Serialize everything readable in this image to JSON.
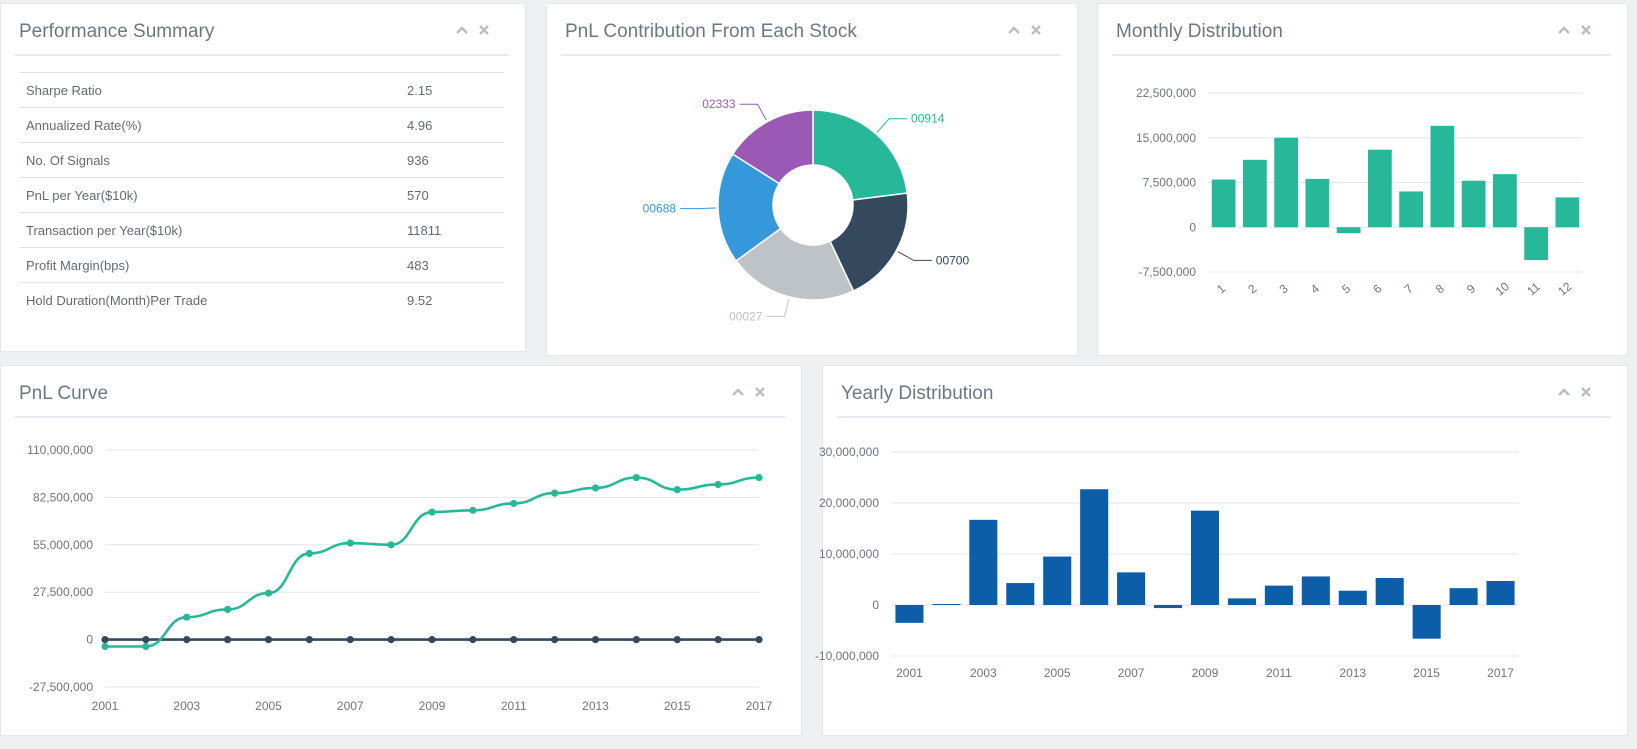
{
  "colors": {
    "teal": "#26b899",
    "navy": "#34495e",
    "blue": "#3498db",
    "gray": "#bdc3c7",
    "purple": "#9b59b6",
    "yearly_bar": "#0c5ea8"
  },
  "panels": {
    "performance": {
      "title": "Performance Summary",
      "rows": [
        {
          "label": "Sharpe Ratio",
          "value": "2.15"
        },
        {
          "label": "Annualized Rate(%)",
          "value": "4.96"
        },
        {
          "label": "No. Of Signals",
          "value": "936"
        },
        {
          "label": "PnL per Year($10k)",
          "value": "570"
        },
        {
          "label": "Transaction per Year($10k)",
          "value": "11811"
        },
        {
          "label": "Profit Margin(bps)",
          "value": "483"
        },
        {
          "label": "Hold Duration(Month)Per Trade",
          "value": "9.52"
        }
      ]
    },
    "pnl_contribution": {
      "title": "PnL Contribution From Each Stock"
    },
    "monthly": {
      "title": "Monthly Distribution"
    },
    "pnl_curve": {
      "title": "PnL Curve"
    },
    "yearly": {
      "title": "Yearly Distribution"
    }
  },
  "chart_data": [
    {
      "id": "pnl_contribution",
      "type": "pie",
      "donut": true,
      "labels": [
        "00914",
        "00700",
        "00027",
        "00688",
        "02333"
      ],
      "values": [
        23,
        20,
        22,
        19,
        16
      ],
      "colors": [
        "#26b899",
        "#34495e",
        "#bdc3c7",
        "#3498db",
        "#9b59b6"
      ]
    },
    {
      "id": "monthly",
      "type": "bar",
      "categories": [
        "1",
        "2",
        "3",
        "4",
        "5",
        "6",
        "7",
        "8",
        "9",
        "10",
        "11",
        "12"
      ],
      "values": [
        8000000,
        11300000,
        15000000,
        8100000,
        -1000000,
        13000000,
        6000000,
        17000000,
        7800000,
        8900000,
        -5500000,
        5000000
      ],
      "ylim": [
        -7500000,
        22500000
      ],
      "yticks": [
        -7500000,
        0,
        7500000,
        15000000,
        22500000
      ],
      "ytick_labels": [
        "-7,500,000",
        "0",
        "7,500,000",
        "15,000,000",
        "22,500,000"
      ],
      "grid": true
    },
    {
      "id": "pnl_curve",
      "type": "line",
      "x": [
        "2001",
        "2002",
        "2003",
        "2004",
        "2005",
        "2006",
        "2007",
        "2008",
        "2009",
        "2010",
        "2011",
        "2012",
        "2013",
        "2014",
        "2015",
        "2016",
        "2017"
      ],
      "xtick_labels": [
        "2001",
        "2003",
        "2005",
        "2007",
        "2009",
        "2011",
        "2013",
        "2015",
        "2017"
      ],
      "series": [
        {
          "values": [
            -4000000,
            -4000000,
            13000000,
            17500000,
            27000000,
            50000000,
            56000000,
            55000000,
            74000000,
            75000000,
            79000000,
            85000000,
            88000000,
            94000000,
            87000000,
            90000000,
            94000000
          ]
        },
        {
          "values": [
            0,
            0,
            0,
            0,
            0,
            0,
            0,
            0,
            0,
            0,
            0,
            0,
            0,
            0,
            0,
            0,
            0
          ]
        }
      ],
      "ylim": [
        -27500000,
        110000000
      ],
      "yticks": [
        -27500000,
        0,
        27500000,
        55000000,
        82500000,
        110000000
      ],
      "ytick_labels": [
        "-27,500,000",
        "0",
        "27,500,000",
        "55,000,000",
        "82,500,000",
        "110,000,000"
      ],
      "grid": true
    },
    {
      "id": "yearly",
      "type": "bar",
      "categories": [
        "2001",
        "2002",
        "2003",
        "2004",
        "2005",
        "2006",
        "2007",
        "2008",
        "2009",
        "2010",
        "2011",
        "2012",
        "2013",
        "2014",
        "2015",
        "2016",
        "2017"
      ],
      "xtick_labels": [
        "2001",
        "2003",
        "2005",
        "2007",
        "2009",
        "2011",
        "2013",
        "2015",
        "2017"
      ],
      "values": [
        -3500000,
        200000,
        16700000,
        4300000,
        9500000,
        22700000,
        6400000,
        -600000,
        18500000,
        1300000,
        3800000,
        5600000,
        2800000,
        5300000,
        -6600000,
        3300000,
        4700000
      ],
      "ylim": [
        -10000000,
        30000000
      ],
      "yticks": [
        -10000000,
        0,
        10000000,
        20000000,
        30000000
      ],
      "ytick_labels": [
        "-10,000,000",
        "0",
        "10,000,000",
        "20,000,000",
        "30,000,000"
      ],
      "grid": true
    }
  ]
}
